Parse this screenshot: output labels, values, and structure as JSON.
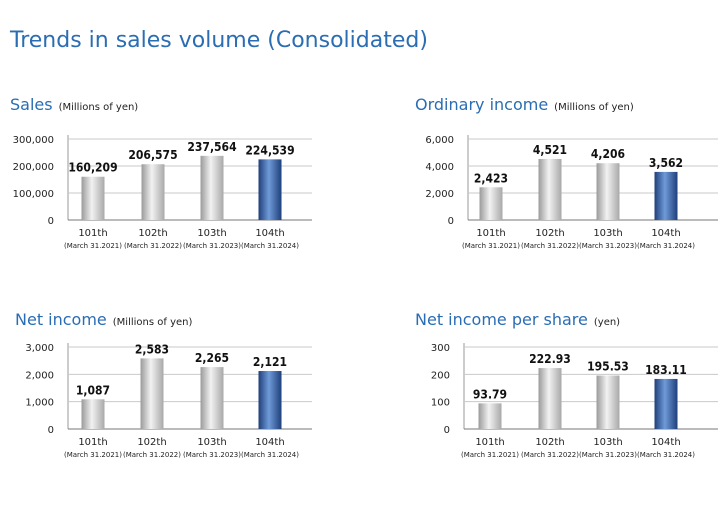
{
  "page": {
    "title": "Trends in sales volume (Consolidated)"
  },
  "colors": {
    "accent": "#2a6db3",
    "bar_gray": "#c8c8c8",
    "bar_blue": "#2a5ea8"
  },
  "chart_data": [
    {
      "id": "sales",
      "type": "bar",
      "title": "Sales",
      "unit": "(Millions of yen)",
      "categories": [
        "101th",
        "102th",
        "103th",
        "104th"
      ],
      "sublabels": [
        "(March 31.2021)",
        "(March 31.2022)",
        "(March 31.2023)",
        "(March 31.2024)"
      ],
      "values": [
        160209,
        206575,
        237564,
        224539
      ],
      "value_labels": [
        "160,209",
        "206,575",
        "237,564",
        "224,539"
      ],
      "yticks": [
        0,
        100000,
        200000,
        300000
      ],
      "ytick_labels": [
        "0",
        "100,000",
        "200,000",
        "300,000"
      ],
      "ylim": [
        0,
        300000
      ],
      "highlight_index": 3
    },
    {
      "id": "ordinary",
      "type": "bar",
      "title": "Ordinary income",
      "unit": "(Millions of yen)",
      "categories": [
        "101th",
        "102th",
        "103th",
        "104th"
      ],
      "sublabels": [
        "(March 31.2021)",
        "(March 31.2022)",
        "(March 31.2023)",
        "(March 31.2024)"
      ],
      "values": [
        2423,
        4521,
        4206,
        3562
      ],
      "value_labels": [
        "2,423",
        "4,521",
        "4,206",
        "3,562"
      ],
      "yticks": [
        0,
        2000,
        4000,
        6000
      ],
      "ytick_labels": [
        "0",
        "2,000",
        "4,000",
        "6,000"
      ],
      "ylim": [
        0,
        6000
      ],
      "highlight_index": 3
    },
    {
      "id": "net",
      "type": "bar",
      "title": "Net income",
      "unit": "(Millions of yen)",
      "categories": [
        "101th",
        "102th",
        "103th",
        "104th"
      ],
      "sublabels": [
        "(March 31.2021)",
        "(March 31.2022)",
        "(March 31.2023)",
        "(March 31.2024)"
      ],
      "values": [
        1087,
        2583,
        2265,
        2121
      ],
      "value_labels": [
        "1,087",
        "2,583",
        "2,265",
        "2,121"
      ],
      "yticks": [
        0,
        1000,
        2000,
        3000
      ],
      "ytick_labels": [
        "0",
        "1,000",
        "2,000",
        "3,000"
      ],
      "ylim": [
        0,
        3000
      ],
      "highlight_index": 3
    },
    {
      "id": "pershare",
      "type": "bar",
      "title": "Net income per share",
      "unit": "(yen)",
      "categories": [
        "101th",
        "102th",
        "103th",
        "104th"
      ],
      "sublabels": [
        "(March 31.2021)",
        "(March 31.2022)",
        "(March 31.2023)",
        "(March 31.2024)"
      ],
      "values": [
        93.79,
        222.93,
        195.53,
        183.11
      ],
      "value_labels": [
        "93.79",
        "222.93",
        "195.53",
        "183.11"
      ],
      "yticks": [
        0,
        100,
        200,
        300
      ],
      "ytick_labels": [
        "0",
        "100",
        "200",
        "300"
      ],
      "ylim": [
        0,
        300
      ],
      "highlight_index": 3
    }
  ]
}
